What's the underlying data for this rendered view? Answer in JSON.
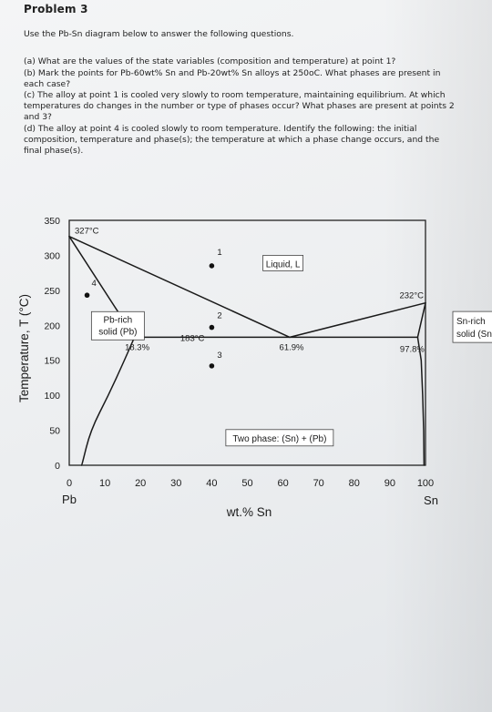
{
  "problem": {
    "title": "Problem 3",
    "intro": "Use the Pb-Sn diagram below to answer the following questions.",
    "questions": [
      {
        "lines": [
          "(a) What are the values of the state variables (composition and temperature) at point 1?"
        ]
      },
      {
        "lines": [
          "(b) Mark the points for Pb-60wt% Sn and Pb-20wt% Sn alloys at 250oC. What phases are present in",
          "each case?"
        ]
      },
      {
        "lines": [
          "(c) The alloy at point 1 is cooled very slowly to room temperature, maintaining equilibrium. At which",
          "temperatures do changes in the number or type of phases occur? What phases are present at points 2",
          "and 3?"
        ]
      },
      {
        "lines": [
          "(d) The alloy at point 4 is cooled slowly to room temperature. Identify the following: the initial",
          "composition, temperature and phase(s); the temperature at which a phase change occurs, and the",
          "final phase(s)."
        ]
      }
    ]
  },
  "chart_data": {
    "type": "phase_diagram",
    "xlabel": "wt.% Sn",
    "ylabel": "Temperature, T (°C)",
    "xlim": [
      0,
      100
    ],
    "ylim": [
      0,
      350
    ],
    "x_ticks": [
      "0",
      "10",
      "20",
      "30",
      "40",
      "50",
      "60",
      "70",
      "80",
      "90",
      "100"
    ],
    "y_ticks": [
      "0",
      "50",
      "100",
      "150",
      "200",
      "250",
      "300",
      "350"
    ],
    "x_end_labels": {
      "left": "Pb",
      "right": "Sn"
    },
    "melting_points": [
      {
        "x": 0,
        "y": 327,
        "label": "327°C"
      },
      {
        "x": 100,
        "y": 232,
        "label": "232°C"
      }
    ],
    "eutectic": {
      "temperature": 183,
      "label": "183°C",
      "compositions": [
        {
          "x": 18.3,
          "label": "18.3%"
        },
        {
          "x": 61.9,
          "label": "61.9%"
        },
        {
          "x": 97.8,
          "label": "97.8%"
        }
      ]
    },
    "lines": {
      "liquidus_left": [
        [
          0,
          327
        ],
        [
          61.9,
          183
        ]
      ],
      "liquidus_right": [
        [
          61.9,
          183
        ],
        [
          100,
          232
        ]
      ],
      "solidus_left": [
        [
          0,
          327
        ],
        [
          18.3,
          183
        ]
      ],
      "solidus_right": [
        [
          97.8,
          183
        ],
        [
          100,
          232
        ]
      ],
      "solvus_left": [
        [
          18.3,
          183
        ],
        [
          15.5,
          150
        ],
        [
          11,
          100
        ],
        [
          6,
          50
        ],
        [
          3.5,
          0
        ]
      ],
      "solvus_right": [
        [
          97.8,
          183
        ],
        [
          98.8,
          150
        ],
        [
          99.2,
          100
        ],
        [
          99.5,
          50
        ],
        [
          99.6,
          0
        ]
      ]
    },
    "regions": [
      {
        "label": "Liquid, L",
        "x": 60,
        "y": 287
      },
      {
        "label": "Pb-rich solid (Pb)",
        "lines": [
          "Pb-rich",
          "solid (Pb)"
        ],
        "x": 7,
        "y": 200
      },
      {
        "label": "Sn-rich solid (Sn)",
        "lines": [
          "Sn-rich",
          "solid (Sn"
        ],
        "x": 105,
        "y": 195
      },
      {
        "label": "Two phase: (Sn) + (Pb)",
        "x": 57,
        "y": 38
      }
    ],
    "points": [
      {
        "label": "1",
        "x": 40,
        "y": 285
      },
      {
        "label": "2",
        "x": 40,
        "y": 197
      },
      {
        "label": "3",
        "x": 40,
        "y": 142
      },
      {
        "label": "4",
        "x": 5,
        "y": 243
      }
    ],
    "grid": false
  }
}
